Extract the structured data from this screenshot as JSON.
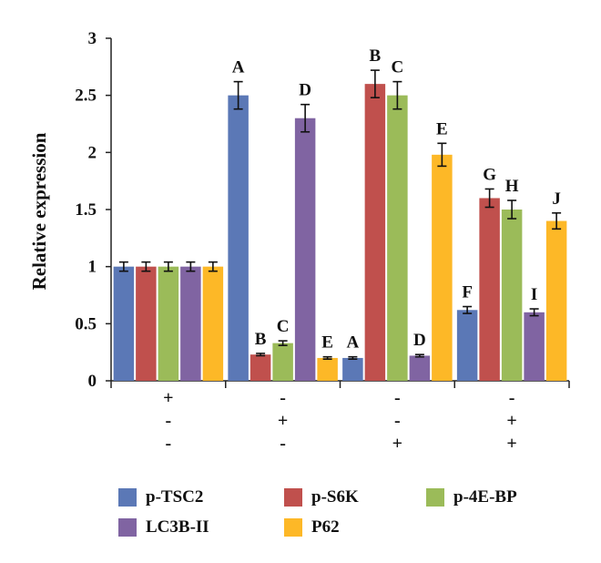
{
  "chart_data": {
    "type": "bar",
    "title": "",
    "xlabel": "",
    "ylabel": "Relative expression",
    "ylim": [
      0,
      3
    ],
    "yticks": [
      "0",
      "0.5",
      "1",
      "1.5",
      "2",
      "2.5",
      "3"
    ],
    "grid": false,
    "legend_position": "bottom",
    "groups": 4,
    "condition_rows": [
      [
        "+",
        "-",
        "-",
        "-"
      ],
      [
        "-",
        "+",
        "-",
        "+"
      ],
      [
        "-",
        "-",
        "+",
        "+"
      ]
    ],
    "series": [
      {
        "name": "p-TSC2",
        "color": "#5B78B6",
        "values": [
          1.0,
          2.5,
          0.2,
          0.62
        ],
        "errors": [
          0.04,
          0.12,
          0.01,
          0.03
        ],
        "labels": [
          "",
          "A",
          "A",
          "F"
        ]
      },
      {
        "name": "p-S6K",
        "color": "#C0504D",
        "values": [
          1.0,
          0.23,
          2.6,
          1.6
        ],
        "errors": [
          0.04,
          0.01,
          0.12,
          0.08
        ],
        "labels": [
          "",
          "B",
          "B",
          "G"
        ]
      },
      {
        "name": "p-4E-BP",
        "color": "#9BBB59",
        "values": [
          1.0,
          0.33,
          2.5,
          1.5
        ],
        "errors": [
          0.04,
          0.02,
          0.12,
          0.08
        ],
        "labels": [
          "",
          "C",
          "C",
          "H"
        ]
      },
      {
        "name": "LC3B-II",
        "color": "#8064A2",
        "values": [
          1.0,
          2.3,
          0.22,
          0.6
        ],
        "errors": [
          0.04,
          0.12,
          0.01,
          0.03
        ],
        "labels": [
          "",
          "D",
          "D",
          "I"
        ]
      },
      {
        "name": "P62",
        "color": "#FDB827",
        "values": [
          1.0,
          0.2,
          1.98,
          1.4
        ],
        "errors": [
          0.04,
          0.01,
          0.1,
          0.07
        ],
        "labels": [
          "",
          "E",
          "E",
          "J"
        ]
      }
    ]
  }
}
